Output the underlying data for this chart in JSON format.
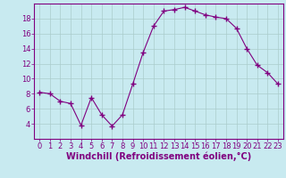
{
  "x": [
    0,
    1,
    2,
    3,
    4,
    5,
    6,
    7,
    8,
    9,
    10,
    11,
    12,
    13,
    14,
    15,
    16,
    17,
    18,
    19,
    20,
    21,
    22,
    23
  ],
  "y": [
    8.2,
    8.0,
    7.0,
    6.7,
    3.8,
    7.5,
    5.2,
    3.7,
    5.2,
    9.3,
    13.5,
    17.0,
    19.0,
    19.2,
    19.5,
    19.0,
    18.5,
    18.2,
    18.0,
    16.7,
    14.0,
    11.8,
    10.8,
    9.3
  ],
  "line_color": "#800080",
  "marker": "+",
  "marker_size": 4,
  "marker_linewidth": 1.0,
  "background_color": "#c8eaf0",
  "grid_color": "#aacccc",
  "xlabel": "Windchill (Refroidissement éolien,°C)",
  "xlabel_fontsize": 7,
  "tick_fontsize": 6,
  "ylim": [
    2,
    20
  ],
  "xlim": [
    -0.5,
    23.5
  ],
  "yticks": [
    4,
    6,
    8,
    10,
    12,
    14,
    16,
    18
  ],
  "xticks": [
    0,
    1,
    2,
    3,
    4,
    5,
    6,
    7,
    8,
    9,
    10,
    11,
    12,
    13,
    14,
    15,
    16,
    17,
    18,
    19,
    20,
    21,
    22,
    23
  ]
}
